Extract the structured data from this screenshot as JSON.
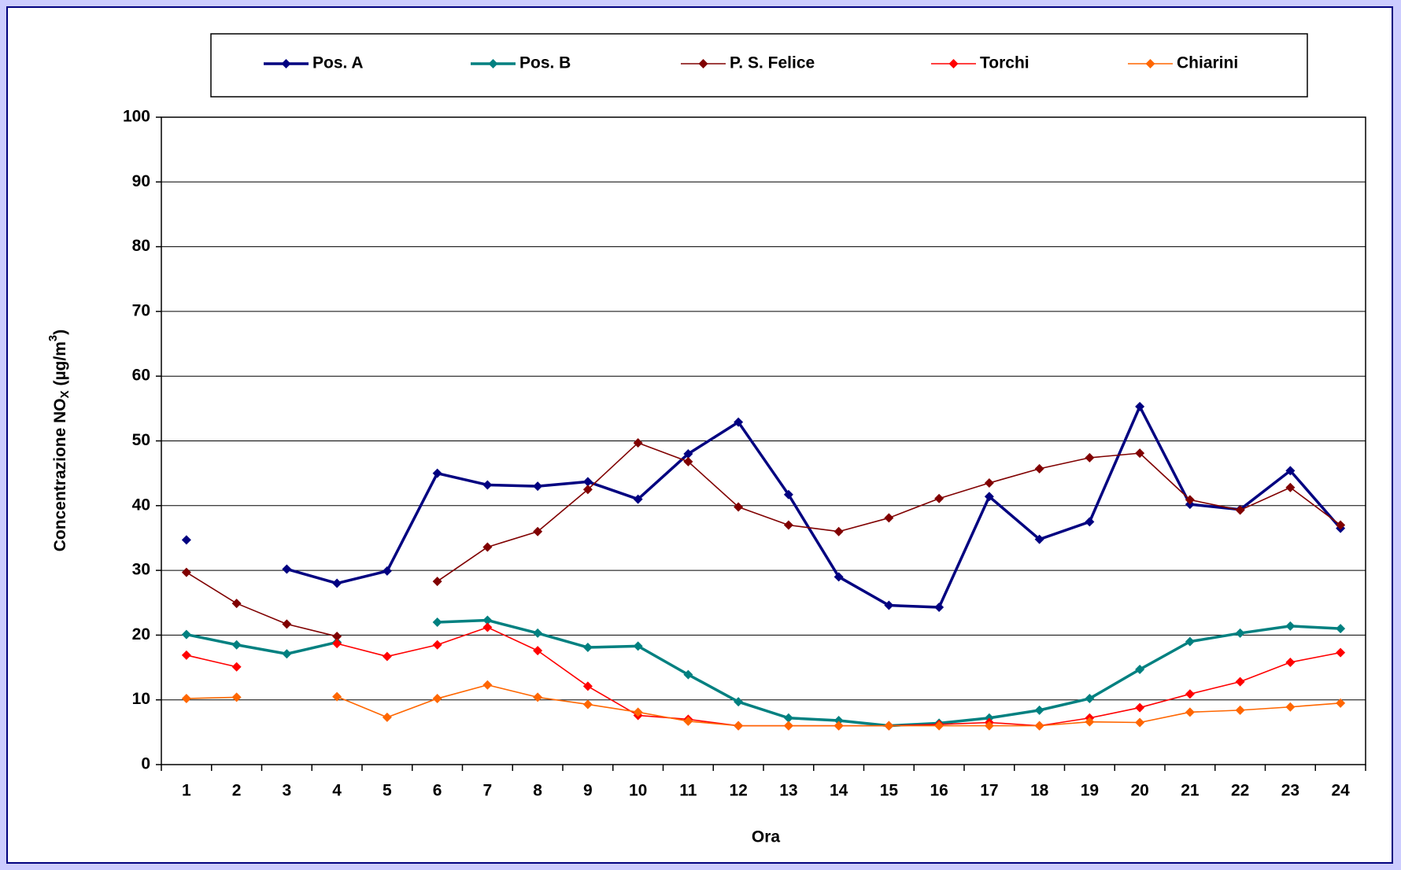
{
  "chart_data": {
    "type": "line",
    "ylabel": [
      "Concentrazione NO",
      "X",
      " (µg/m",
      "3",
      ")"
    ],
    "xlabel": "Ora",
    "categories": [
      "1",
      "2",
      "3",
      "4",
      "5",
      "6",
      "7",
      "8",
      "9",
      "10",
      "11",
      "12",
      "13",
      "14",
      "15",
      "16",
      "17",
      "18",
      "19",
      "20",
      "21",
      "22",
      "23",
      "24"
    ],
    "ylim": [
      0,
      100
    ],
    "yticks": [
      0,
      10,
      20,
      30,
      40,
      50,
      60,
      70,
      80,
      90,
      100
    ],
    "grid": true,
    "legend": "top",
    "series": [
      {
        "name": "Pos. A",
        "color": "#000080",
        "values": [
          34.7,
          null,
          30.2,
          28,
          29.9,
          45,
          43.2,
          43,
          43.7,
          41,
          48,
          52.9,
          41.7,
          29,
          24.6,
          24.3,
          41.4,
          34.8,
          37.5,
          55.3,
          40.2,
          39.4,
          45.4,
          36.5
        ]
      },
      {
        "name": "Pos. B",
        "color": "#008080",
        "values": [
          20.1,
          18.5,
          17.1,
          18.9,
          null,
          22,
          22.3,
          20.3,
          18.1,
          18.3,
          13.9,
          9.7,
          7.2,
          6.8,
          6,
          6.4,
          7.2,
          8.4,
          10.2,
          14.7,
          19,
          20.3,
          21.4,
          21
        ]
      },
      {
        "name": "P. S. Felice",
        "color": "#800000",
        "values": [
          29.7,
          24.9,
          21.7,
          19.8,
          null,
          28.3,
          33.6,
          36,
          42.5,
          49.7,
          46.8,
          39.8,
          37,
          36,
          38.1,
          41.1,
          43.5,
          45.7,
          47.4,
          48.1,
          40.9,
          39.3,
          42.8,
          37
        ]
      },
      {
        "name": "Torchi",
        "color": "#ff0000",
        "values": [
          16.9,
          15.1,
          null,
          18.7,
          16.7,
          18.5,
          21.2,
          17.6,
          12.1,
          7.6,
          7,
          6,
          6,
          6,
          6,
          6.2,
          6.5,
          6,
          7.2,
          8.8,
          10.9,
          12.8,
          15.8,
          17.3
        ]
      },
      {
        "name": "Chiarini",
        "color": "#ff6600",
        "values": [
          10.2,
          10.4,
          null,
          10.5,
          7.3,
          10.2,
          12.3,
          10.4,
          9.3,
          8.1,
          6.7,
          6,
          6,
          6,
          6,
          6,
          6,
          6,
          6.6,
          6.5,
          8.1,
          8.4,
          8.9,
          9.5
        ]
      }
    ]
  }
}
